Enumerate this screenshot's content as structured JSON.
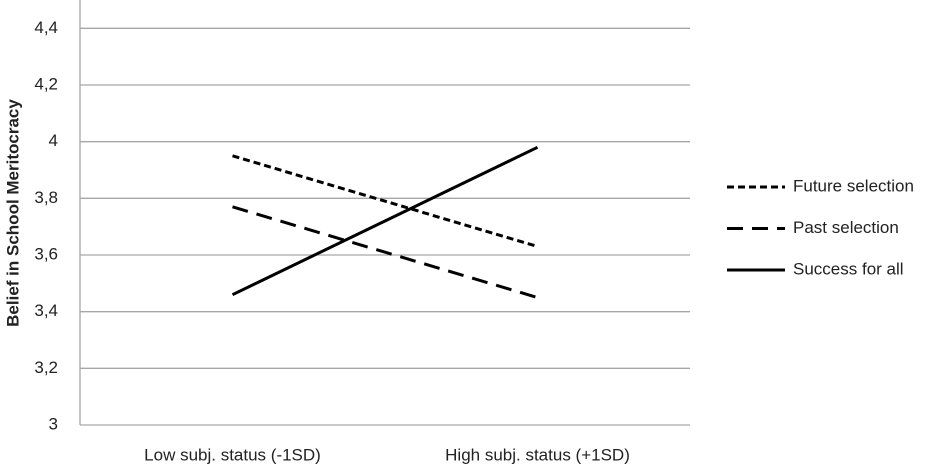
{
  "chart_data": {
    "type": "line",
    "y_label": "Belief in School Meritocracy",
    "categories": [
      "Low subj. status (-1SD)",
      "High subj. status (+1SD)"
    ],
    "series": [
      {
        "name": "Future selection",
        "color": "#000000",
        "dash": "short",
        "values": [
          3.95,
          3.63
        ]
      },
      {
        "name": "Past selection",
        "color": "#000000",
        "dash": "long",
        "values": [
          3.77,
          3.45
        ]
      },
      {
        "name": "Success for all",
        "color": "#000000",
        "dash": "solid",
        "values": [
          3.46,
          3.98
        ]
      }
    ],
    "ylim": [
      3,
      4.5
    ],
    "yticks": [
      3,
      {
        "value": 3.2,
        "label": "3,2"
      },
      {
        "value": 3.4,
        "label": "3,4"
      },
      {
        "value": 3.6,
        "label": "3,6"
      },
      {
        "value": 3.8,
        "label": "3,8"
      },
      4,
      {
        "value": 4.2,
        "label": "4,2"
      },
      {
        "value": 4.4,
        "label": "4,4"
      }
    ],
    "grid": true,
    "legend": "right"
  }
}
